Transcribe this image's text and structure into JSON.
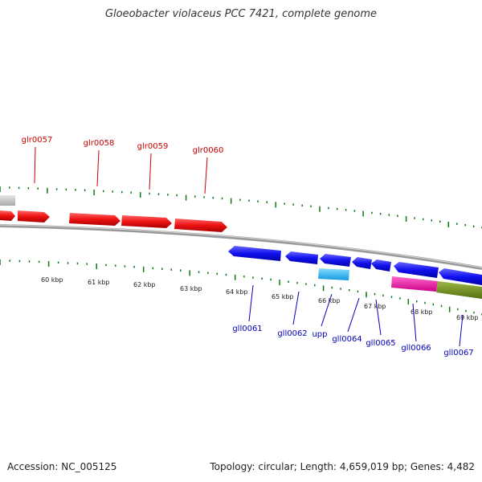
{
  "title": "Gloeobacter violaceus PCC 7421, complete genome",
  "footer": {
    "accession": "Accession: NC_005125",
    "topology": "Topology: circular; Length: 4,659,019 bp; Genes: 4,482"
  },
  "scale": {
    "ticks_kbp": [
      "60 kbp",
      "61 kbp",
      "62 kbp",
      "63 kbp",
      "64 kbp",
      "65 kbp",
      "66 kbp",
      "67 kbp",
      "68 kbp",
      "69 kbp"
    ]
  },
  "colors": {
    "forward_gene": "#ee1111",
    "reverse_gene": "#1111ee",
    "other_forward": "#c0c0c0",
    "rna_gene": "#22bbee",
    "pink_feature": "#ee1199",
    "olive_feature": "#6e8a22",
    "backbone": "#888888",
    "tick": "#117711",
    "forward_label": "#cc0000",
    "reverse_label": "#0000bb"
  },
  "genes": {
    "forward": [
      {
        "name": "glr0057"
      },
      {
        "name": "glr0058"
      },
      {
        "name": "glr0059"
      },
      {
        "name": "glr0060"
      }
    ],
    "reverse": [
      {
        "name": "gll0061"
      },
      {
        "name": "gll0062"
      },
      {
        "name": "upp"
      },
      {
        "name": "gll0064"
      },
      {
        "name": "gll0065"
      },
      {
        "name": "gll0066"
      },
      {
        "name": "gll0067"
      }
    ]
  }
}
